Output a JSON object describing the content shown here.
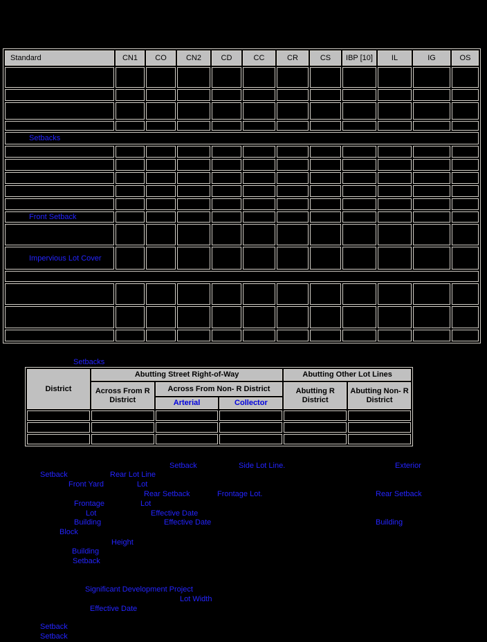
{
  "colors": {
    "background": "#000000",
    "cell_border": "#d4d0c8",
    "header_background": "#c0c0c0",
    "link_blue": "#2424ff",
    "header_link_blue": "#0000dd"
  },
  "table1": {
    "columns": [
      "Standard",
      "CN1",
      "CO",
      "CN2",
      "CD",
      "CC",
      "CR",
      "CS",
      "IBP [10]",
      "IL",
      "IG",
      "OS"
    ],
    "links": {
      "setbacks": "Setbacks",
      "front_setback": "Front Setback",
      "impervious_lot_cover": "Impervious Lot Cover"
    }
  },
  "table2": {
    "caption_link": "Setbacks",
    "header": {
      "district": "District",
      "abutting_street_row": "Abutting Street Right-of-Way",
      "across_from_r": "Across From R District",
      "across_from_non_r": "Across From Non- R District",
      "arterial": "Arterial",
      "collector": "Collector",
      "abutting_other_lot_lines": "Abutting Other Lot Lines",
      "abutting_r": "Abutting R District",
      "abutting_non_r": "Abutting Non- R District"
    }
  },
  "footer_links": [
    "Setback",
    "Side Lot Line.",
    "Exterior",
    "Setback",
    "Rear Lot Line",
    "Front Yard",
    "Lot",
    "Rear Setback",
    "Frontage Lot.",
    "Rear Setback",
    "Frontage",
    "Lot",
    "Lot",
    "Effective Date",
    "Building",
    "Effective Date",
    "Building",
    "Block",
    "Height",
    "Building",
    "Setback",
    "Significant Development Project",
    "Lot Width",
    "Effective Date",
    "Setback",
    "Setback"
  ]
}
